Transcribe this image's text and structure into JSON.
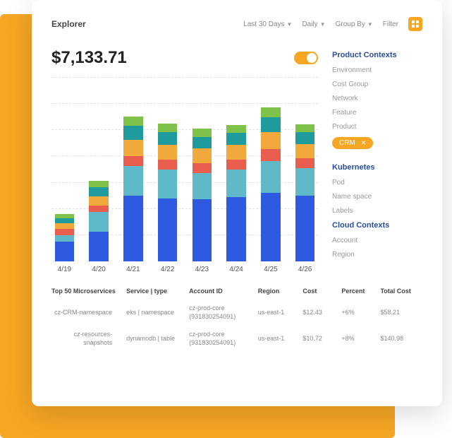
{
  "header": {
    "title": "Explorer",
    "date_range": "Last 30 Days",
    "interval": "Daily",
    "group_by": "Group By",
    "filter_label": "Filter"
  },
  "summary": {
    "total": "$7,133.71"
  },
  "chart": {
    "type": "stacked-bar",
    "categories": [
      "4/19",
      "4/20",
      "4/21",
      "4/22",
      "4/23",
      "4/24",
      "4/25",
      "4/26"
    ],
    "ylim": [
      0,
      280
    ],
    "grid_step": 40,
    "grid_color": "#e2e2e2",
    "background_color": "#ffffff",
    "segment_colors": [
      "#2d5ae0",
      "#5fb9c9",
      "#e95d4f",
      "#f2a93b",
      "#1f9b9e",
      "#7fc24a"
    ],
    "series": [
      [
        30,
        10,
        10,
        8,
        8,
        6
      ],
      [
        45,
        30,
        10,
        14,
        14,
        10
      ],
      [
        100,
        45,
        16,
        24,
        22,
        14
      ],
      [
        96,
        44,
        15,
        23,
        19,
        13
      ],
      [
        95,
        40,
        15,
        22,
        18,
        12
      ],
      [
        98,
        42,
        15,
        23,
        18,
        12
      ],
      [
        105,
        48,
        18,
        26,
        23,
        15
      ],
      [
        100,
        42,
        15,
        22,
        18,
        12
      ]
    ],
    "bar_width": 0.75
  },
  "sidebar": {
    "product_contexts_title": "Product Contexts",
    "product_contexts": [
      "Environment",
      "Cost Group",
      "Network",
      "Feature",
      "Product"
    ],
    "chip_label": "CRM",
    "kubernetes_title": "Kubernetes",
    "kubernetes": [
      "Pod",
      "Name space",
      "Labels"
    ],
    "cloud_title": "Cloud Contexts",
    "cloud": [
      "Account",
      "Region"
    ]
  },
  "table": {
    "columns": [
      "Top 50 Microservices",
      "Service | type",
      "Account ID",
      "Region",
      "Cost",
      "Percent",
      "Total Cost"
    ],
    "rows": [
      [
        "cz-CRM-namespace",
        "eks | namespace",
        "cz-prod-core (931830254091)",
        "us-east-1",
        "$12.43",
        "+6%",
        "$58.21"
      ],
      [
        "cz-resources-snapshots",
        "dynamodb | table",
        "cz-prod-core (931830254091)",
        "us-east-1",
        "$10.72",
        "+8%",
        "$140.98"
      ]
    ]
  }
}
